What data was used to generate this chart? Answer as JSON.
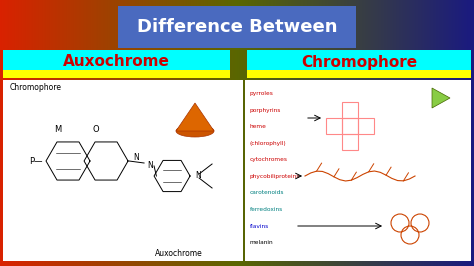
{
  "title": "Difference Between",
  "title_bg": "#4a6abf",
  "title_color": "white",
  "left_label": "Auxochrome",
  "right_label": "Chromophore",
  "label_text_color": "#cc0000",
  "label_bg_yellow": "#ffff00",
  "label_bg_cyan": "#00ffff",
  "bg_color": "#cc2200",
  "bg_right_color": "#1a0080",
  "mid_color": "#556b00",
  "left_panel_bg": "#ffffff",
  "right_panel_bg": "#ffffff",
  "list_items": [
    "pyrroles",
    "porphyrins",
    "heme",
    "(chlorophyll)",
    "cytochromes",
    "phycobiliproteins",
    "carotenoids",
    "ferredoxins",
    "flavins",
    "melanin"
  ],
  "list_colors": [
    "#cc0000",
    "#cc0000",
    "#cc0000",
    "#cc0000",
    "#cc0000",
    "#cc0000",
    "#008080",
    "#008080",
    "#0000cc",
    "#000000"
  ],
  "figw": 4.74,
  "figh": 2.66,
  "dpi": 100
}
